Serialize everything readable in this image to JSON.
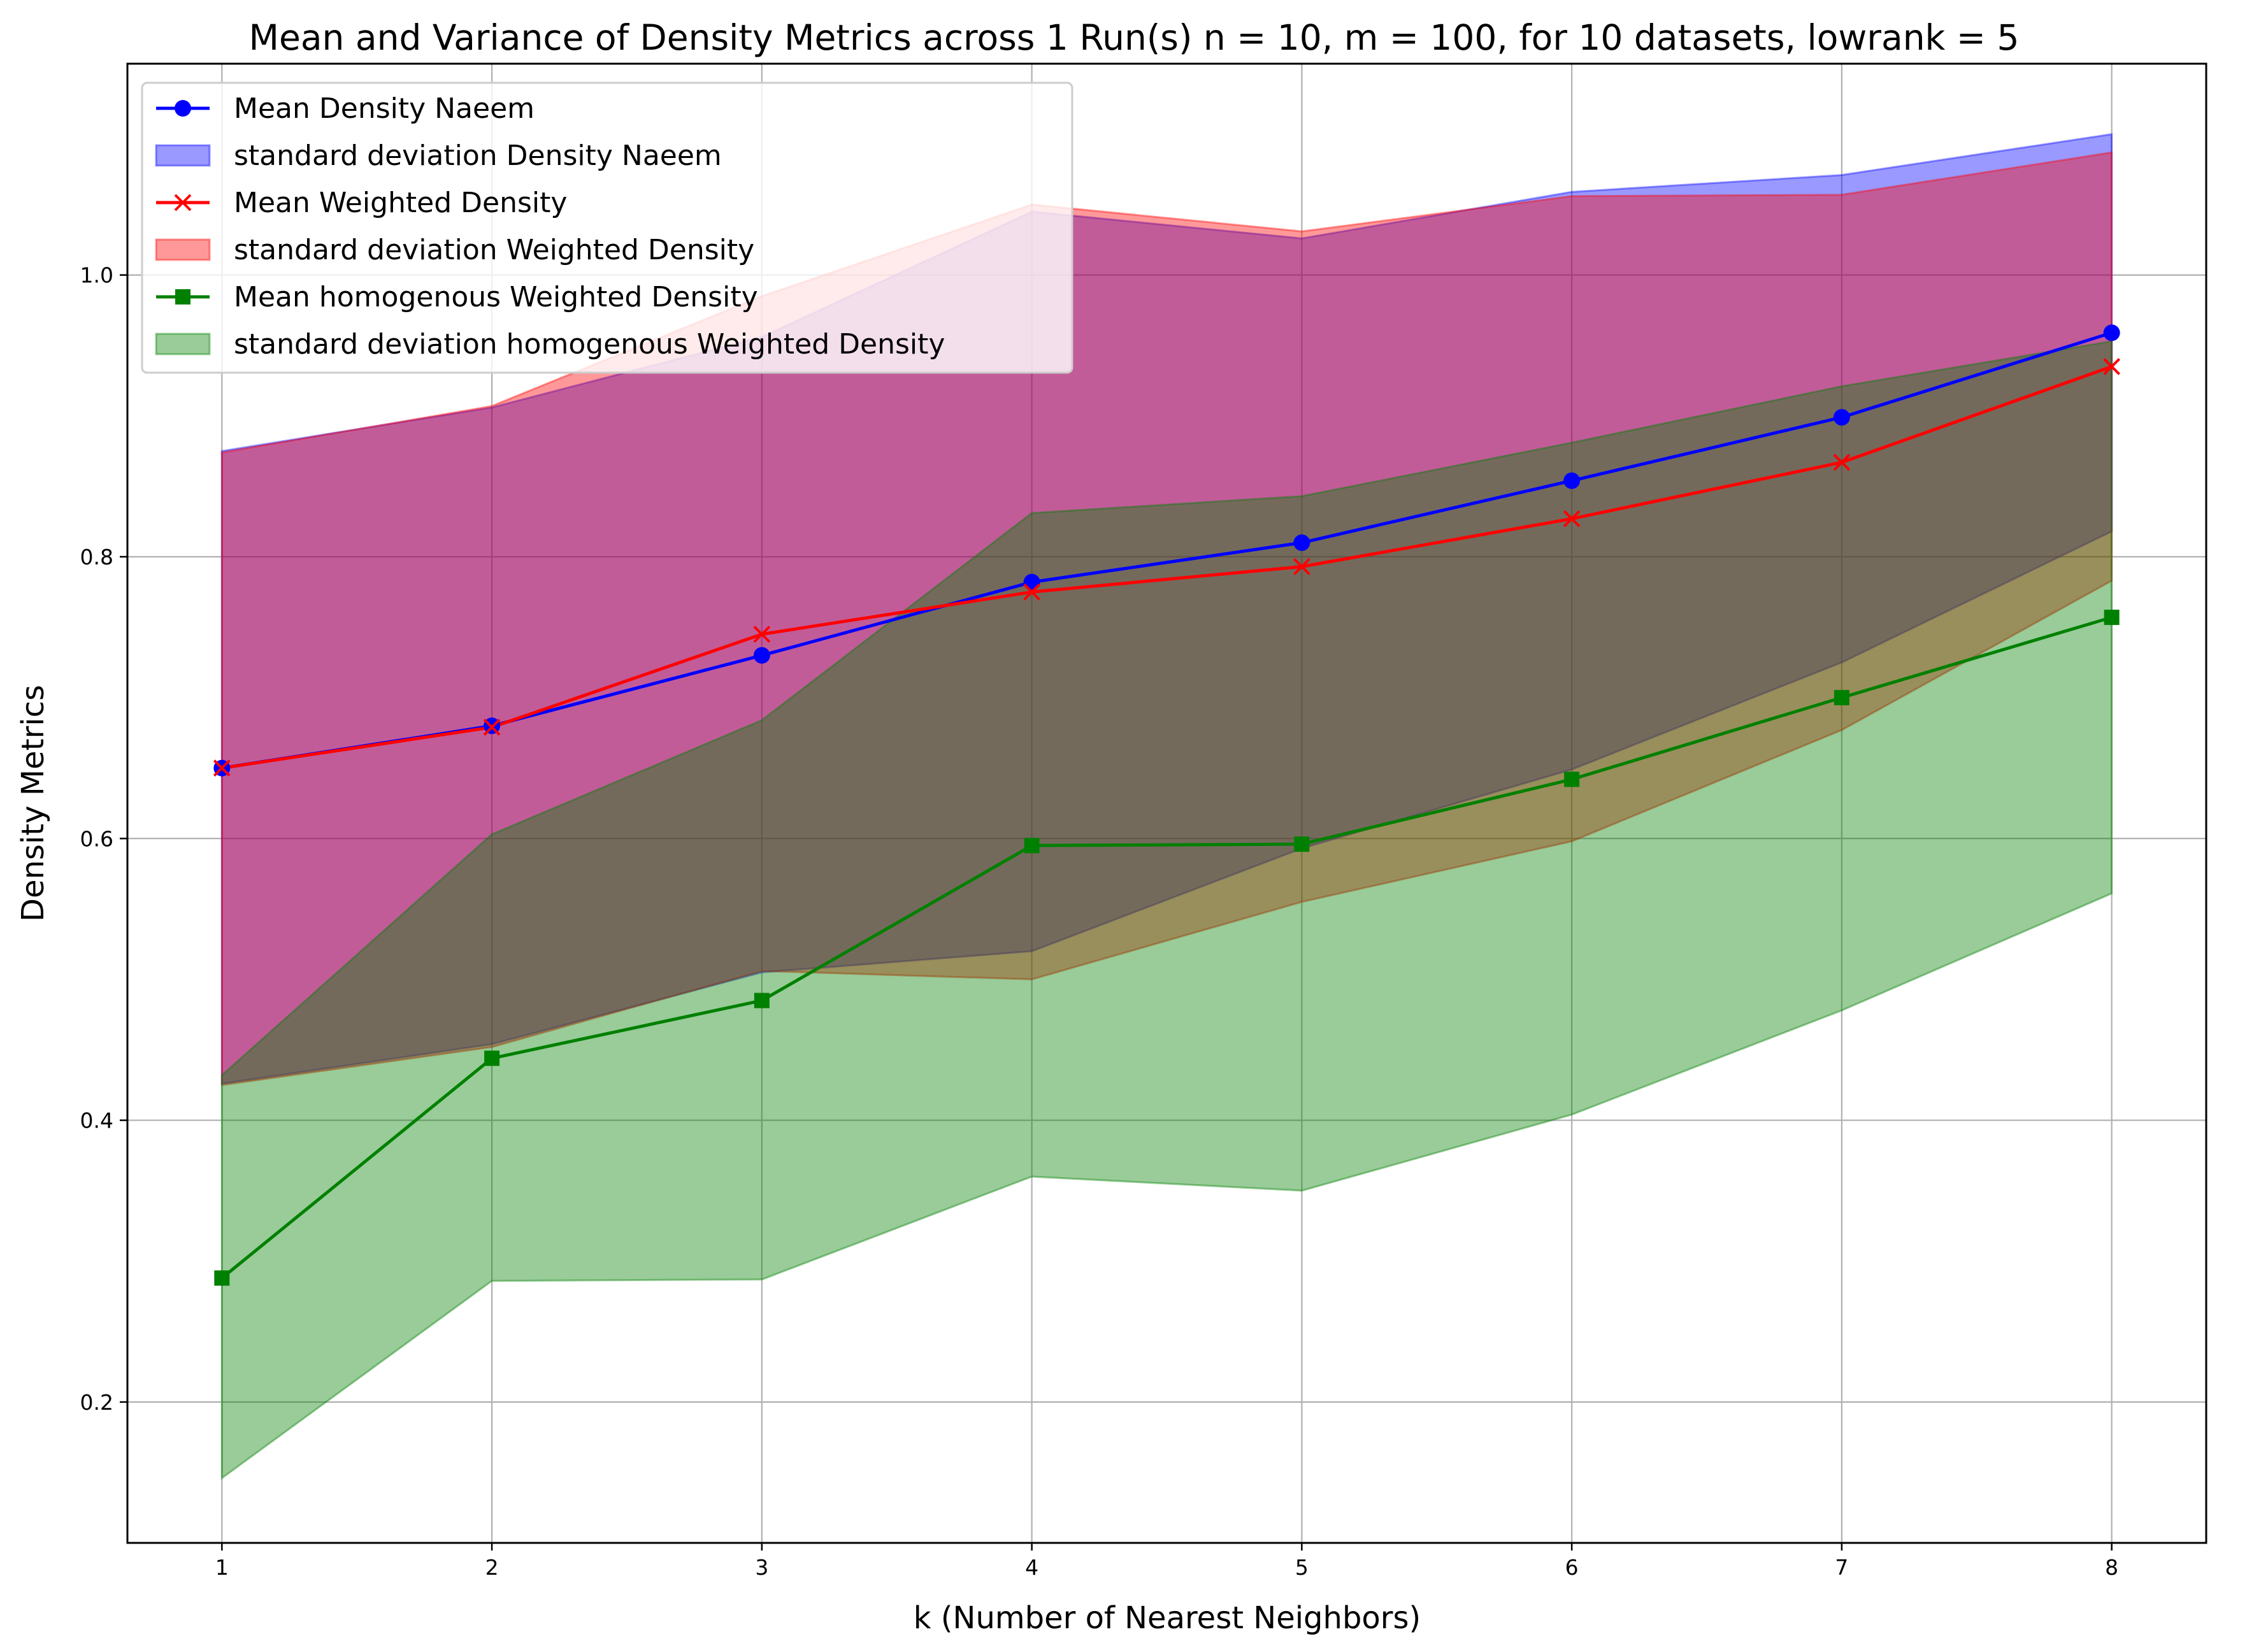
{
  "chart_data": {
    "type": "line",
    "title": "Mean and Variance of Density Metrics across 1 Run(s) n  = 10, m  = 100, for 10 datasets, lowrank = 5",
    "xlabel": "k (Number of Nearest Neighbors)",
    "ylabel": "Density Metrics",
    "x": [
      1,
      2,
      3,
      4,
      5,
      6,
      7,
      8
    ],
    "xlim": [
      0.65,
      8.35
    ],
    "ylim": [
      0.1,
      1.15
    ],
    "xticks": [
      "1",
      "2",
      "3",
      "4",
      "5",
      "6",
      "7",
      "8"
    ],
    "yticks": [
      "0.2",
      "0.4",
      "0.6",
      "0.8",
      "1.0"
    ],
    "ytick_values": [
      0.2,
      0.4,
      0.6,
      0.8,
      1.0
    ],
    "grid": true,
    "legend_position": "top-left",
    "series": [
      {
        "name": "Mean Density Naeem",
        "kind": "line",
        "marker": "circle",
        "color": "#0000ff",
        "values": [
          0.65,
          0.68,
          0.73,
          0.782,
          0.81,
          0.854,
          0.899,
          0.959
        ]
      },
      {
        "name": "standard deviation Density Naeem",
        "kind": "band",
        "color": "#0000ff",
        "lower": [
          0.426,
          0.454,
          0.505,
          0.52,
          0.593,
          0.649,
          0.725,
          0.818
        ],
        "upper": [
          0.875,
          0.906,
          0.956,
          1.045,
          1.026,
          1.059,
          1.071,
          1.1
        ]
      },
      {
        "name": "Mean Weighted Density",
        "kind": "line",
        "marker": "x",
        "color": "#ff0000",
        "values": [
          0.65,
          0.679,
          0.745,
          0.775,
          0.793,
          0.827,
          0.867,
          0.935
        ]
      },
      {
        "name": "standard deviation Weighted Density",
        "kind": "band",
        "color": "#ff0000",
        "lower": [
          0.425,
          0.452,
          0.506,
          0.5,
          0.555,
          0.598,
          0.677,
          0.783
        ],
        "upper": [
          0.874,
          0.907,
          0.985,
          1.05,
          1.031,
          1.056,
          1.057,
          1.087
        ]
      },
      {
        "name": "Mean homogenous Weighted Density",
        "kind": "line",
        "marker": "square",
        "color": "#008000",
        "values": [
          0.288,
          0.444,
          0.485,
          0.595,
          0.596,
          0.642,
          0.7,
          0.757
        ]
      },
      {
        "name": "standard deviation homogenous Weighted Density",
        "kind": "band",
        "color": "#008000",
        "lower": [
          0.146,
          0.286,
          0.287,
          0.36,
          0.35,
          0.404,
          0.478,
          0.561
        ],
        "upper": [
          0.432,
          0.603,
          0.684,
          0.831,
          0.843,
          0.881,
          0.921,
          0.953
        ]
      }
    ]
  }
}
